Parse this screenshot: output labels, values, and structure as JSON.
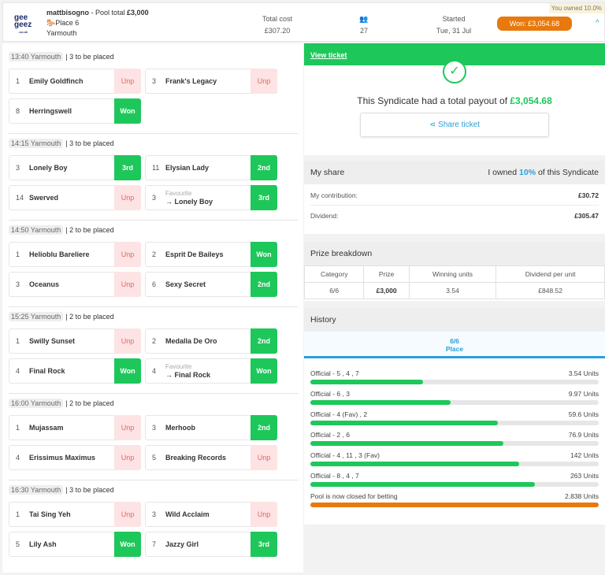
{
  "header": {
    "logo": "geegeez",
    "user": "mattbisogno",
    "pool_label": "Pool total",
    "pool_total": "£3,000",
    "bet_type": "Place 6",
    "venue": "Yarmouth",
    "total_cost_label": "Total cost",
    "total_cost": "£307.20",
    "entrants": "27",
    "started_label": "Started",
    "started": "Tue, 31 Jul",
    "won": "Won: £3,054.68",
    "owned": "You owned 10.0%"
  },
  "races": [
    {
      "time": "13:40 Yarmouth",
      "places": "3 to be placed",
      "runners": [
        {
          "n": "1",
          "name": "Emily Goldfinch",
          "status": "Unp"
        },
        {
          "n": "3",
          "name": "Frank's Legacy",
          "status": "Unp"
        },
        {
          "n": "8",
          "name": "Herringswell",
          "status": "Won"
        }
      ]
    },
    {
      "time": "14:15 Yarmouth",
      "places": "3 to be placed",
      "runners": [
        {
          "n": "3",
          "name": "Lonely Boy",
          "status": "3rd"
        },
        {
          "n": "11",
          "name": "Elysian Lady",
          "status": "2nd"
        },
        {
          "n": "14",
          "name": "Swerved",
          "status": "Unp"
        },
        {
          "n": "3",
          "fav": "Favourite",
          "name": "→ Lonely Boy",
          "status": "3rd"
        }
      ]
    },
    {
      "time": "14:50 Yarmouth",
      "places": "2 to be placed",
      "runners": [
        {
          "n": "1",
          "name": "Helioblu Bareliere",
          "status": "Unp"
        },
        {
          "n": "2",
          "name": "Esprit De Baileys",
          "status": "Won"
        },
        {
          "n": "3",
          "name": "Oceanus",
          "status": "Unp"
        },
        {
          "n": "6",
          "name": "Sexy Secret",
          "status": "2nd"
        }
      ]
    },
    {
      "time": "15:25 Yarmouth",
      "places": "2 to be placed",
      "runners": [
        {
          "n": "1",
          "name": "Swilly Sunset",
          "status": "Unp"
        },
        {
          "n": "2",
          "name": "Medalla De Oro",
          "status": "2nd"
        },
        {
          "n": "4",
          "name": "Final Rock",
          "status": "Won"
        },
        {
          "n": "4",
          "fav": "Favourite",
          "name": "→ Final Rock",
          "status": "Won"
        }
      ]
    },
    {
      "time": "16:00 Yarmouth",
      "places": "2 to be placed",
      "runners": [
        {
          "n": "1",
          "name": "Mujassam",
          "status": "Unp"
        },
        {
          "n": "3",
          "name": "Merhoob",
          "status": "2nd"
        },
        {
          "n": "4",
          "name": "Erissimus Maximus",
          "status": "Unp"
        },
        {
          "n": "5",
          "name": "Breaking Records",
          "status": "Unp"
        }
      ]
    },
    {
      "time": "16:30 Yarmouth",
      "places": "3 to be placed",
      "runners": [
        {
          "n": "1",
          "name": "Tai Sing Yeh",
          "status": "Unp"
        },
        {
          "n": "3",
          "name": "Wild Acclaim",
          "status": "Unp"
        },
        {
          "n": "5",
          "name": "Lily Ash",
          "status": "Won"
        },
        {
          "n": "7",
          "name": "Jazzy Girl",
          "status": "3rd"
        }
      ]
    }
  ],
  "ticket": {
    "view": "View ticket",
    "payout_text": "This Syndicate had a total payout of",
    "payout": "£3,054.68",
    "share": "Share ticket"
  },
  "my_share": {
    "title": "My share",
    "owned_pre": "I owned",
    "owned_pct": "10%",
    "owned_post": "of this Syndicate",
    "contribution_label": "My contribution:",
    "contribution": "£30.72",
    "dividend_label": "Dividend:",
    "dividend": "£305.47"
  },
  "prize": {
    "title": "Prize breakdown",
    "headers": [
      "Category",
      "Prize",
      "Winning units",
      "Dividend per unit"
    ],
    "row": [
      "6/6",
      "£3,000",
      "3.54",
      "£848.52"
    ]
  },
  "history": {
    "title": "History",
    "tab_top": "6/6",
    "tab_bottom": "Place",
    "items": [
      {
        "label": "Official - 5 , 4 , 7",
        "units": "3.54 Units",
        "fraction": 0.39
      },
      {
        "label": "Official - 6 , 3",
        "units": "9.97 Units",
        "fraction": 0.485
      },
      {
        "label": "Official - 4  (Fav) , 2",
        "units": "59.6 Units",
        "fraction": 0.65
      },
      {
        "label": "Official - 2 , 6",
        "units": "76.9 Units",
        "fraction": 0.67
      },
      {
        "label": "Official - 4 , 11 , 3  (Fav)",
        "units": "142 Units",
        "fraction": 0.725
      },
      {
        "label": "Official - 8 , 4 , 7",
        "units": "263 Units",
        "fraction": 0.78
      },
      {
        "label": "Pool is now closed for betting",
        "units": "2,838 Units",
        "fraction": 1.0,
        "color": "#e8790c"
      }
    ]
  },
  "colors": {
    "green": "#1ec75a",
    "orange": "#e8790c",
    "blue": "#2a9fd8"
  }
}
